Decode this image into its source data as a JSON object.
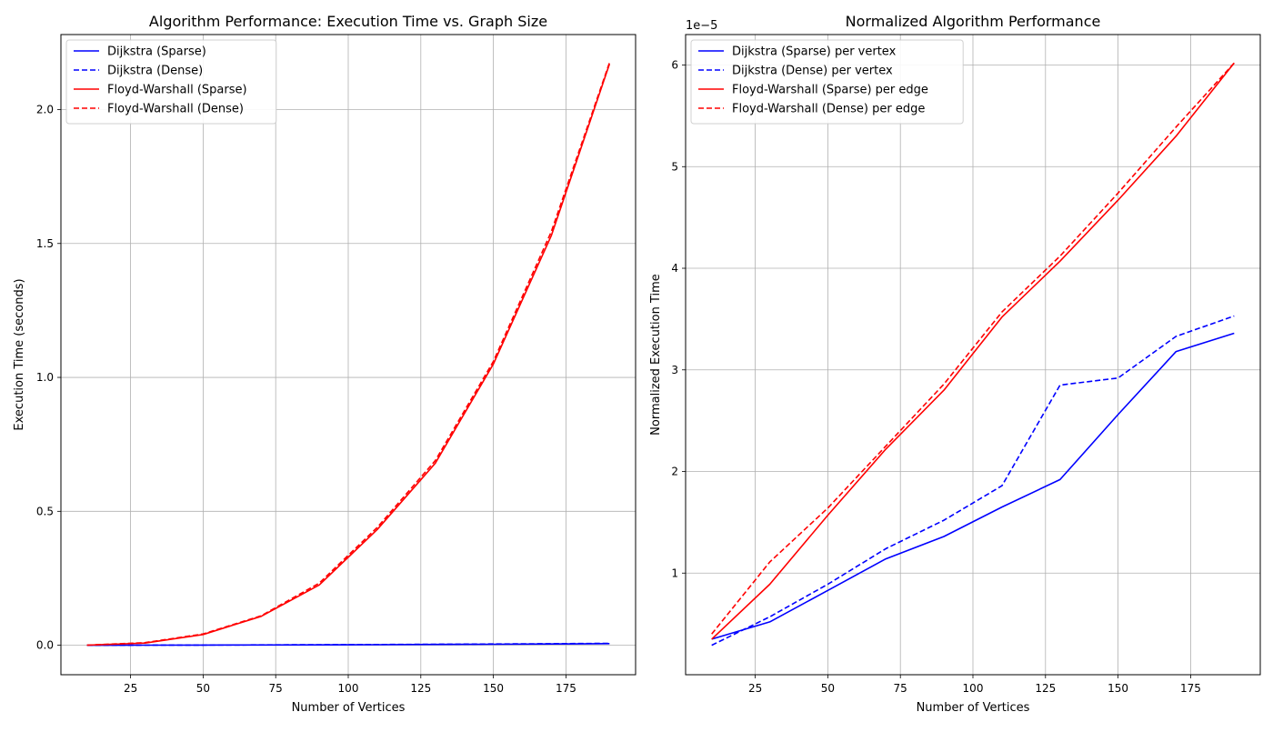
{
  "chart_data": [
    {
      "type": "line",
      "title": "Algorithm Performance: Execution Time vs. Graph Size",
      "xlabel": "Number of Vertices",
      "ylabel": "Execution Time (seconds)",
      "xlim": [
        1,
        199
      ],
      "ylim": [
        -0.11,
        2.28
      ],
      "x_ticks": [
        25,
        50,
        75,
        100,
        125,
        150,
        175
      ],
      "y_ticks": [
        0.0,
        0.5,
        1.0,
        1.5,
        2.0
      ],
      "y_tick_labels": [
        "0.0",
        "0.5",
        "1.0",
        "1.5",
        "2.0"
      ],
      "y_offset_label": "",
      "grid": true,
      "legend_position": "top-left",
      "x": [
        10,
        30,
        50,
        70,
        90,
        110,
        130,
        150,
        170,
        190
      ],
      "series": [
        {
          "name": "Dijkstra (Sparse)",
          "color": "#0000ff",
          "dash": "solid",
          "values": [
            0.0001,
            0.0003,
            0.0006,
            0.001,
            0.0015,
            0.0021,
            0.0029,
            0.0038,
            0.0049,
            0.0061
          ]
        },
        {
          "name": "Dijkstra (Dense)",
          "color": "#0000ff",
          "dash": "dashed",
          "values": [
            0.0001,
            0.0004,
            0.0008,
            0.0013,
            0.0019,
            0.0027,
            0.0036,
            0.0046,
            0.0058,
            0.0071
          ]
        },
        {
          "name": "Floyd-Warshall (Sparse)",
          "color": "#ff0000",
          "dash": "solid",
          "values": [
            0.0003,
            0.008,
            0.04,
            0.108,
            0.225,
            0.432,
            0.68,
            1.05,
            1.53,
            2.17
          ]
        },
        {
          "name": "Floyd-Warshall (Dense)",
          "color": "#ff0000",
          "dash": "dashed",
          "values": [
            0.0005,
            0.01,
            0.042,
            0.11,
            0.232,
            0.44,
            0.69,
            1.06,
            1.545,
            2.175
          ]
        }
      ]
    },
    {
      "type": "line",
      "title": "Normalized Algorithm Performance",
      "xlabel": "Number of Vertices",
      "ylabel": "Normalized Execution Time",
      "xlim": [
        1,
        199
      ],
      "ylim": [
        0.0,
        6.3
      ],
      "x_ticks": [
        25,
        50,
        75,
        100,
        125,
        150,
        175
      ],
      "y_ticks": [
        1,
        2,
        3,
        4,
        5,
        6
      ],
      "y_tick_labels": [
        "1",
        "2",
        "3",
        "4",
        "5",
        "6"
      ],
      "y_offset_label": "1e−5",
      "grid": true,
      "legend_position": "top-left",
      "x": [
        10,
        30,
        50,
        70,
        90,
        110,
        130,
        150,
        170,
        190
      ],
      "series": [
        {
          "name": "Dijkstra (Sparse) per vertex",
          "color": "#0000ff",
          "dash": "solid",
          "values": [
            0.35,
            0.52,
            0.83,
            1.14,
            1.36,
            1.65,
            1.92,
            2.56,
            3.18,
            3.36
          ]
        },
        {
          "name": "Dijkstra (Dense) per vertex",
          "color": "#0000ff",
          "dash": "dashed",
          "values": [
            0.29,
            0.57,
            0.89,
            1.24,
            1.52,
            1.86,
            2.85,
            2.92,
            3.33,
            3.53
          ]
        },
        {
          "name": "Floyd-Warshall (Sparse) per edge",
          "color": "#ff0000",
          "dash": "solid",
          "values": [
            0.35,
            0.89,
            1.57,
            2.22,
            2.8,
            3.52,
            4.07,
            4.67,
            5.3,
            6.02
          ]
        },
        {
          "name": "Floyd-Warshall (Dense) per edge",
          "color": "#ff0000",
          "dash": "dashed",
          "values": [
            0.4,
            1.11,
            1.64,
            2.25,
            2.86,
            3.57,
            4.12,
            4.74,
            5.39,
            6.02
          ]
        }
      ]
    }
  ]
}
